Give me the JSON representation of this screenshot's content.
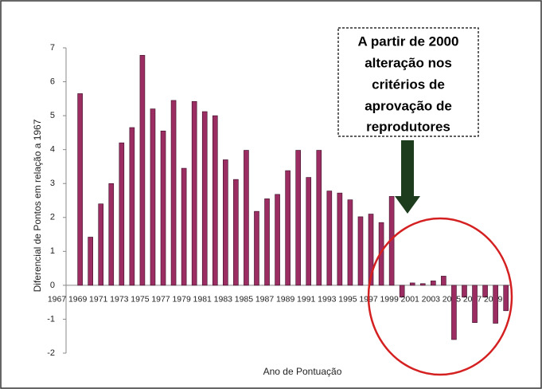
{
  "chart_data": {
    "type": "bar",
    "y_label": "Diferencial de Pontos em relação a 1967",
    "x_label": "Ano de Pontuação",
    "annotation": [
      "A partir de 2000",
      "alteração nos",
      "critérios de",
      "aprovação de",
      "reprodutores"
    ],
    "categories": [
      "1967",
      null,
      "1969",
      null,
      "1971",
      null,
      "1973",
      null,
      "1975",
      null,
      "1977",
      null,
      "1979",
      null,
      "1981",
      null,
      "1983",
      null,
      "1985",
      null,
      "1987",
      null,
      "1989",
      null,
      "1991",
      null,
      "1993",
      null,
      "1995",
      null,
      "1997",
      null,
      "1999",
      null,
      "2001",
      null,
      "2003",
      null,
      "2005",
      null,
      "2007",
      null,
      "2009",
      null
    ],
    "values": [
      null,
      null,
      5.65,
      1.42,
      2.4,
      3.0,
      4.2,
      4.65,
      6.78,
      5.2,
      4.55,
      5.45,
      3.45,
      5.42,
      5.12,
      5.0,
      3.7,
      3.12,
      3.98,
      2.18,
      2.55,
      2.68,
      3.38,
      3.98,
      3.18,
      3.98,
      2.78,
      2.72,
      2.52,
      2.02,
      2.1,
      1.85,
      2.62,
      -0.35,
      0.07,
      0.05,
      0.13,
      0.27,
      -1.6,
      -0.35,
      -1.1,
      -0.35,
      -1.12,
      -0.75
    ],
    "color": "#9b2d63",
    "ylim": [
      -2,
      7
    ],
    "yticks": [
      -2,
      -1,
      0,
      1,
      2,
      3,
      4,
      5,
      6,
      7
    ],
    "grid": false
  }
}
